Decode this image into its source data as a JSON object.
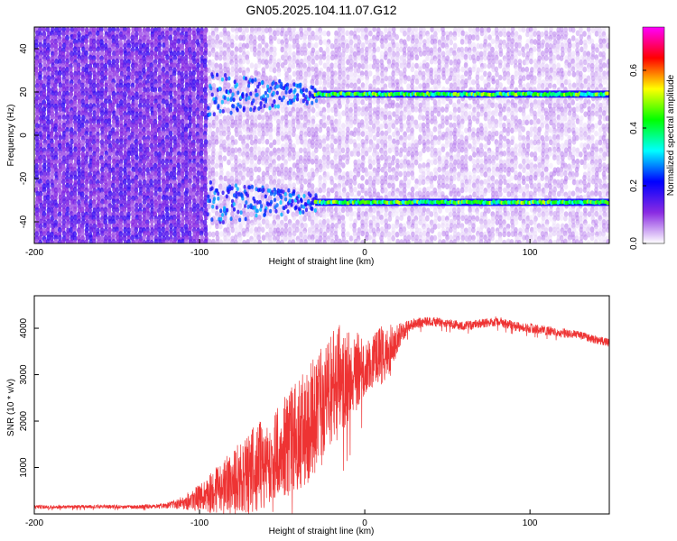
{
  "title": "GN05.2025.104.11.07.G12",
  "chart_data": [
    {
      "type": "heatmap",
      "xlabel": "Height of straight line (km)",
      "ylabel": "Frequency (Hz)",
      "xlim": [
        -200,
        148
      ],
      "ylim": [
        -50,
        50
      ],
      "x_ticks": [
        -200,
        -100,
        0,
        100
      ],
      "x_tick_labels": [
        "-200",
        "-100",
        "0",
        "100"
      ],
      "y_ticks": [
        -40,
        -20,
        0,
        20,
        40
      ],
      "y_tick_labels": [
        "-40",
        "-20",
        "0",
        "20",
        "40"
      ],
      "colorbar": {
        "label": "Normalized spectral amplitude",
        "range": [
          0,
          0.75
        ],
        "ticks": [
          0,
          0.2,
          0.4,
          0.6
        ],
        "tick_labels": [
          "0.0",
          "0.2",
          "0.4",
          "0.6"
        ],
        "colormap": [
          "#ffffff",
          "#8a2be2",
          "#0000ff",
          "#00ffff",
          "#00ff00",
          "#ffff00",
          "#ff0000",
          "#ff00ff"
        ]
      },
      "features": [
        {
          "name": "upper frequency line",
          "frequency": 19,
          "x_range": [
            -30,
            148
          ],
          "amplitude": 0.3
        },
        {
          "name": "lower frequency line",
          "frequency": -31,
          "x_range": [
            -30,
            148
          ],
          "amplitude": 0.25
        }
      ],
      "noise_floor_boundary_x": -95
    },
    {
      "type": "line",
      "xlabel": "Height of straight line (km)",
      "ylabel": "SNR (10 * v/v)",
      "xlim": [
        -200,
        148
      ],
      "ylim": [
        0,
        4700
      ],
      "x_ticks": [
        -200,
        -100,
        0,
        100
      ],
      "x_tick_labels": [
        "-200",
        "-100",
        "0",
        "100"
      ],
      "y_ticks": [
        1000,
        2000,
        3000,
        4000
      ],
      "y_tick_labels": [
        "1000",
        "2000",
        "3000",
        "4000"
      ],
      "color": "#ee3333",
      "series": [
        {
          "x": [
            -200,
            -180,
            -160,
            -140,
            -120,
            -110,
            -100,
            -90,
            -80,
            -70,
            -60,
            -50,
            -40,
            -30,
            -25,
            -20,
            -15,
            -10,
            -5,
            0,
            5,
            10,
            15,
            20,
            25,
            30,
            40,
            50,
            60,
            70,
            80,
            90,
            100,
            110,
            120,
            130,
            140,
            148
          ],
          "y": [
            150,
            150,
            160,
            150,
            180,
            250,
            350,
            500,
            700,
            900,
            1100,
            1400,
            1700,
            2100,
            2400,
            2600,
            2900,
            3000,
            3100,
            3150,
            3300,
            3400,
            3500,
            3800,
            4000,
            4100,
            4150,
            4100,
            4050,
            4100,
            4150,
            4050,
            4000,
            3950,
            3900,
            3850,
            3750,
            3700
          ],
          "noise": [
            40,
            40,
            40,
            40,
            60,
            150,
            300,
            500,
            700,
            900,
            1000,
            1100,
            1200,
            1300,
            1300,
            1300,
            1200,
            1000,
            900,
            600,
            600,
            700,
            600,
            300,
            150,
            120,
            100,
            100,
            100,
            100,
            110,
            100,
            100,
            100,
            100,
            90,
            90,
            90
          ]
        }
      ]
    }
  ]
}
